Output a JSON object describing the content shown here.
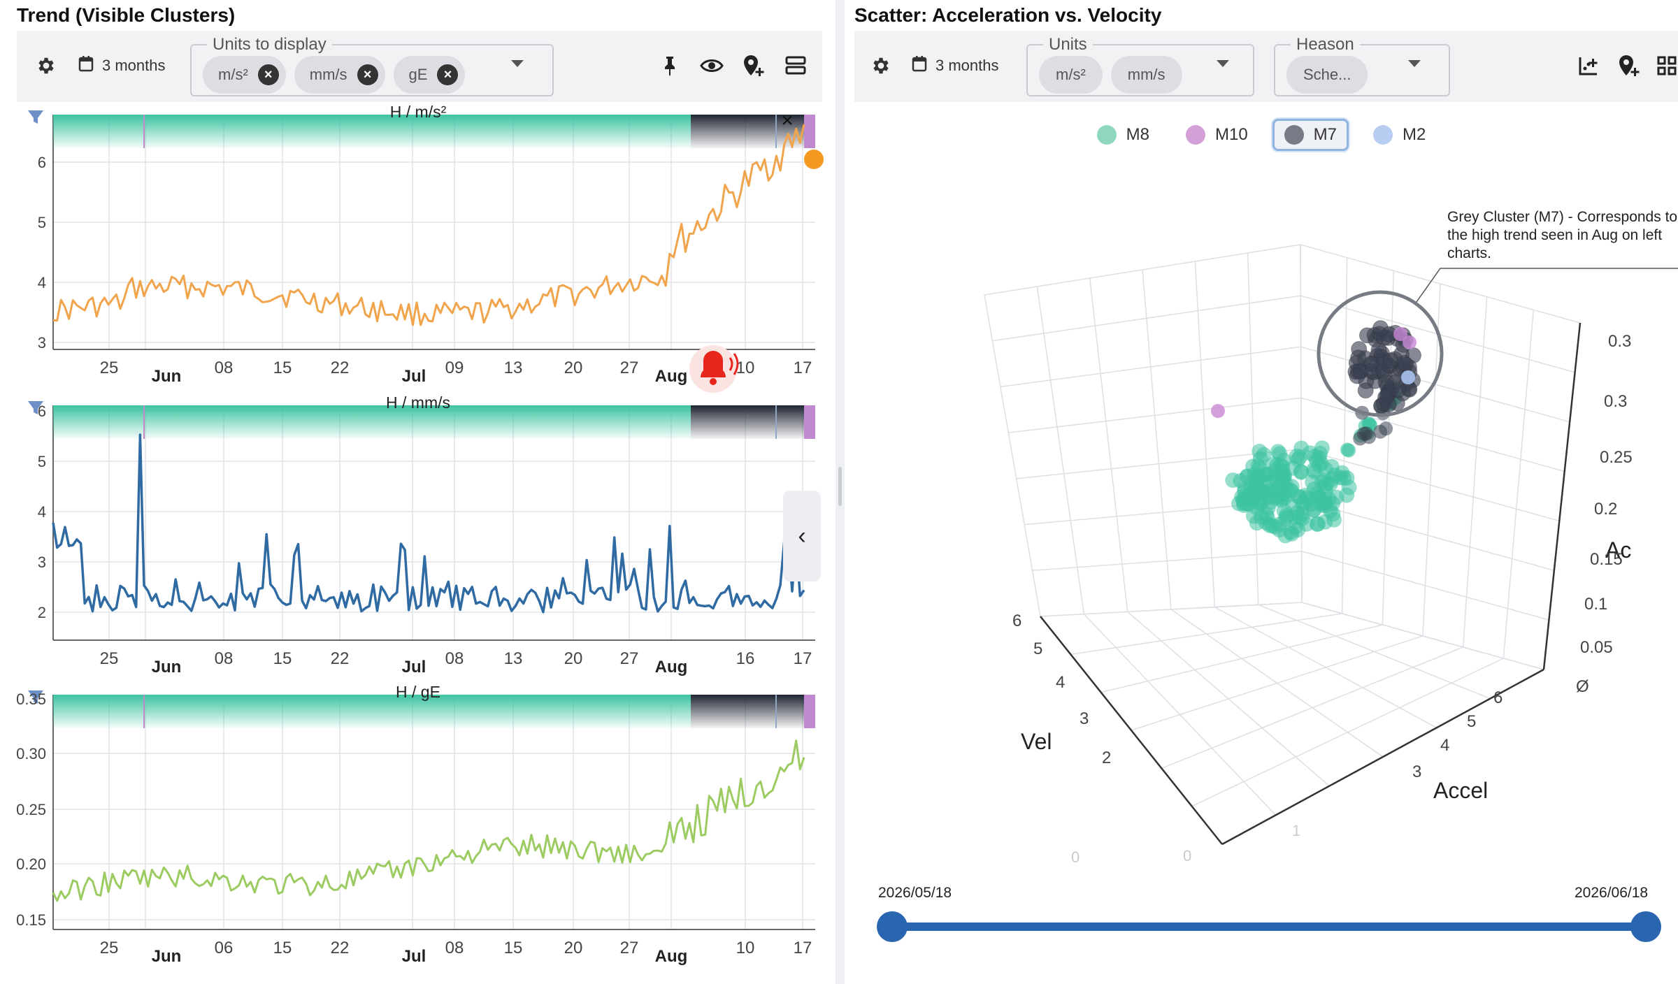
{
  "left": {
    "title": "Trend (Visible Clusters)",
    "toolbar": {
      "range_label": "3 months",
      "units_legend": "Units to display",
      "units": [
        "m/s²",
        "mm/s",
        "gE"
      ],
      "icons": [
        "settings-gear-icon",
        "calendar-icon",
        "pin-icon",
        "eye-icon",
        "add-location-icon",
        "layers-icon"
      ]
    },
    "collapse_glyph": "‹",
    "charts": [
      {
        "title": "H / m/s²",
        "color": "#f0a44c",
        "yticks": [
          "6",
          "5",
          "4",
          "3"
        ],
        "xticks": [
          "25",
          "08",
          "15",
          "22",
          "09",
          "13",
          "20",
          "27",
          "10",
          "17"
        ],
        "month_labels": [
          "Jun",
          "Jul",
          "Aug"
        ],
        "band_close": "×",
        "alarm_icon": "alarm-bell-icon"
      },
      {
        "title": "H / mm/s",
        "color": "#2f6aa3",
        "yticks": [
          "6",
          "5",
          "4",
          "3",
          "2"
        ],
        "xticks": [
          "25",
          "08",
          "15",
          "22",
          "08",
          "13",
          "20",
          "27",
          "16",
          "17"
        ],
        "month_labels": [
          "Jun",
          "Jul",
          "Aug"
        ]
      },
      {
        "title": "H / gE",
        "color": "#9ccb62",
        "yticks": [
          "0.35",
          "0.30",
          "0.25",
          "0.20",
          "0.15"
        ],
        "xticks": [
          "25",
          "06",
          "15",
          "22",
          "08",
          "15",
          "20",
          "27",
          "10",
          "17"
        ],
        "month_labels": [
          "Jun",
          "Jul",
          "Aug"
        ]
      }
    ]
  },
  "right": {
    "title": "Scatter: Acceleration vs. Velocity",
    "toolbar": {
      "range_label": "3 months",
      "units_legend": "Units",
      "units": [
        "m/s²",
        "mm/s"
      ],
      "heason_legend": "Heason",
      "heason_value": "Sche...",
      "icons": [
        "settings-gear-icon",
        "calendar-icon",
        "add-chart-icon",
        "add-location-icon",
        "grid-icon"
      ]
    },
    "legend": [
      {
        "label": "M8",
        "color": "#8fd6c0"
      },
      {
        "label": "M10",
        "color": "#d3a0d8"
      },
      {
        "label": "M7",
        "color": "#767b85",
        "selected": true
      },
      {
        "label": "M2",
        "color": "#b8cdf2"
      }
    ],
    "annotation": "Grey Cluster (M7) - Corresponds to the high trend seen in Aug on left charts.",
    "axis_labels": {
      "vel": "Vel",
      "accel": "Accel",
      "ac": "Ac"
    },
    "z_ticks": [
      "0.3",
      "0.3",
      "0.25",
      "0.2",
      "0.15",
      "0.1",
      "0.05",
      "Ø"
    ],
    "vel_ticks": [
      "6",
      "5",
      "4",
      "3",
      "2"
    ],
    "accel_ticks": [
      "6",
      "5",
      "4",
      "3"
    ],
    "floor_ticks": [
      "1",
      "0",
      "0"
    ],
    "date_start": "2026/05/18",
    "date_end": "2026/06/18"
  }
}
